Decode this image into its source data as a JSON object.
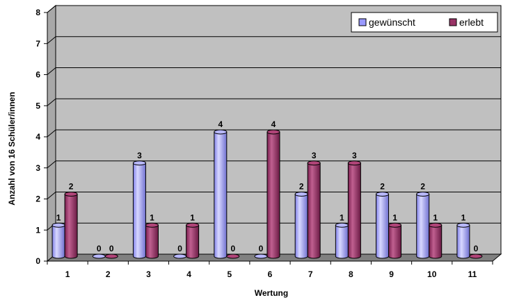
{
  "chart_data": {
    "type": "bar",
    "categories": [
      "1",
      "2",
      "3",
      "4",
      "5",
      "6",
      "7",
      "8",
      "9",
      "10",
      "11"
    ],
    "series": [
      {
        "name": "gewünscht",
        "values": [
          1,
          0,
          3,
          0,
          4,
          0,
          2,
          1,
          2,
          2,
          1
        ],
        "color": "#9999ff"
      },
      {
        "name": "erlebt",
        "values": [
          2,
          0,
          1,
          1,
          0,
          4,
          3,
          3,
          1,
          1,
          0
        ],
        "color": "#993366"
      }
    ],
    "xlabel": "Wertung",
    "ylabel": "Anzahl von 16 Schüler/innen",
    "ylim": [
      0,
      8
    ],
    "yticks": [
      0,
      1,
      2,
      3,
      4,
      5,
      6,
      7,
      8
    ],
    "grid": true,
    "legend_position": "top-right",
    "wall_color": "#c0c0c0",
    "floor_color": "#808080"
  }
}
